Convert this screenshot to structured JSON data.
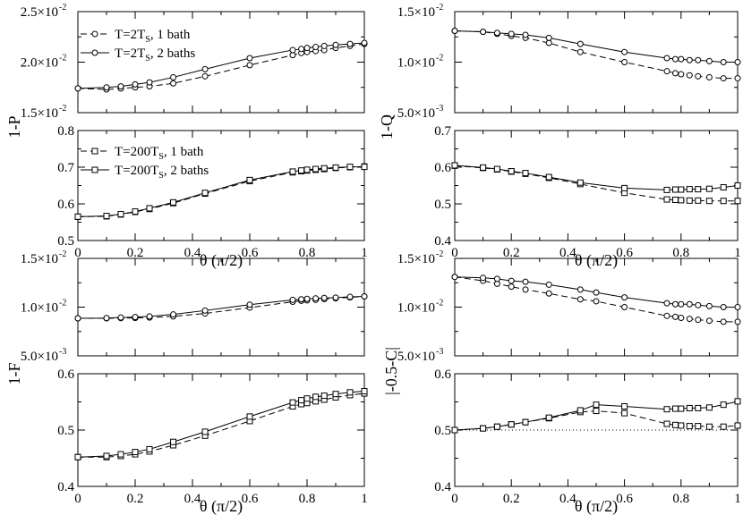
{
  "figure": {
    "ylabel_P": "1-P",
    "ylabel_Q": "1-Q",
    "ylabel_F": "1-F",
    "ylabel_C": "|-0.5-C|"
  },
  "legend_top": [
    {
      "text_pre": "T=2T",
      "sub": "S",
      "text_post": ", 1 bath",
      "style": "dashed",
      "marker": "circle"
    },
    {
      "text_pre": "T=2T",
      "sub": "S",
      "text_post": ", 2 baths",
      "style": "solid",
      "marker": "circle"
    }
  ],
  "legend_bottom": [
    {
      "text_pre": "T=200T",
      "sub": "S",
      "text_post": ", 1 bath",
      "style": "dashed",
      "marker": "square"
    },
    {
      "text_pre": "T=200T",
      "sub": "S",
      "text_post": ", 2 baths",
      "style": "solid",
      "marker": "square"
    }
  ],
  "chart_data": [
    {
      "id": "P-top",
      "type": "line",
      "xlabel": "",
      "ylabel": "1-P",
      "xlim": [
        0,
        1
      ],
      "ylim": [
        0.015,
        0.025
      ],
      "yticks": [
        {
          "m": "1.5",
          "e": "-2",
          "v": 0.015
        },
        {
          "m": "2.0",
          "e": "-2",
          "v": 0.02
        },
        {
          "m": "2.5",
          "e": "-2",
          "v": 0.025
        }
      ],
      "x": [
        0,
        0.1,
        0.15,
        0.2,
        0.25,
        0.333,
        0.444,
        0.6,
        0.75,
        0.78,
        0.8,
        0.83,
        0.86,
        0.9,
        0.95,
        1.0
      ],
      "series": [
        {
          "name": "T=2T_S, 1 bath",
          "style": "dashed",
          "marker": "circle",
          "values": [
            0.0174,
            0.0173,
            0.0174,
            0.0175,
            0.0176,
            0.0179,
            0.0186,
            0.0197,
            0.0207,
            0.0209,
            0.021,
            0.0211,
            0.0212,
            0.0214,
            0.0216,
            0.0218
          ]
        },
        {
          "name": "T=2T_S, 2 baths",
          "style": "solid",
          "marker": "circle",
          "values": [
            0.0174,
            0.0175,
            0.0176,
            0.0178,
            0.018,
            0.0185,
            0.0193,
            0.0204,
            0.0212,
            0.0213,
            0.0214,
            0.0215,
            0.0216,
            0.0217,
            0.0218,
            0.0219
          ]
        }
      ]
    },
    {
      "id": "P-bottom",
      "type": "line",
      "xlabel": "θ (π/2)",
      "ylabel": "",
      "xlim": [
        0,
        1
      ],
      "ylim": [
        0.5,
        0.8
      ],
      "yticks": [
        {
          "m": "0.5",
          "v": 0.5
        },
        {
          "m": "0.6",
          "v": 0.6
        },
        {
          "m": "0.7",
          "v": 0.7
        },
        {
          "m": "0.8",
          "v": 0.8
        }
      ],
      "xticks": [
        "0",
        "0.2",
        "0.4",
        "0.6",
        "0.8",
        "1"
      ],
      "x": [
        0,
        0.1,
        0.15,
        0.2,
        0.25,
        0.333,
        0.444,
        0.6,
        0.75,
        0.78,
        0.8,
        0.83,
        0.86,
        0.9,
        0.95,
        1.0
      ],
      "series": [
        {
          "name": "T=200T_S, 1 bath",
          "style": "dashed",
          "marker": "square",
          "values": [
            0.565,
            0.566,
            0.571,
            0.578,
            0.586,
            0.602,
            0.628,
            0.662,
            0.686,
            0.689,
            0.691,
            0.693,
            0.695,
            0.698,
            0.7,
            0.702
          ]
        },
        {
          "name": "T=200T_S, 2 baths",
          "style": "solid",
          "marker": "square",
          "values": [
            0.565,
            0.567,
            0.572,
            0.579,
            0.588,
            0.604,
            0.63,
            0.665,
            0.688,
            0.691,
            0.693,
            0.695,
            0.697,
            0.699,
            0.701,
            0.701
          ]
        }
      ]
    },
    {
      "id": "Q-top",
      "type": "line",
      "xlabel": "",
      "ylabel": "1-Q",
      "xlim": [
        0,
        1
      ],
      "ylim": [
        0.005,
        0.015
      ],
      "yticks": [
        {
          "m": "5.0",
          "e": "-3",
          "v": 0.005
        },
        {
          "m": "1.0",
          "e": "-2",
          "v": 0.01
        },
        {
          "m": "1.5",
          "e": "-2",
          "v": 0.015
        }
      ],
      "x": [
        0,
        0.1,
        0.15,
        0.2,
        0.25,
        0.333,
        0.444,
        0.6,
        0.75,
        0.78,
        0.8,
        0.83,
        0.86,
        0.9,
        0.95,
        1.0
      ],
      "series": [
        {
          "name": "T=2T_S, 1 bath",
          "style": "dashed",
          "marker": "circle",
          "values": [
            0.0131,
            0.013,
            0.0128,
            0.0126,
            0.0124,
            0.0119,
            0.011,
            0.01,
            0.0091,
            0.0089,
            0.0088,
            0.0087,
            0.0086,
            0.0085,
            0.0084,
            0.0084
          ]
        },
        {
          "name": "T=2T_S, 2 baths",
          "style": "solid",
          "marker": "circle",
          "values": [
            0.0131,
            0.013,
            0.0129,
            0.0128,
            0.0127,
            0.0124,
            0.0118,
            0.011,
            0.0104,
            0.0103,
            0.0103,
            0.0102,
            0.0102,
            0.0101,
            0.01,
            0.01
          ]
        }
      ]
    },
    {
      "id": "Q-bottom",
      "type": "line",
      "xlabel": "θ (π/2)",
      "ylabel": "",
      "xlim": [
        0,
        1
      ],
      "ylim": [
        0.4,
        0.7
      ],
      "yticks": [
        {
          "m": "0.4",
          "v": 0.4
        },
        {
          "m": "0.5",
          "v": 0.5
        },
        {
          "m": "0.6",
          "v": 0.6
        },
        {
          "m": "0.7",
          "v": 0.7
        }
      ],
      "xticks": [
        "0",
        "0.2",
        "0.4",
        "0.6",
        "0.8",
        "1"
      ],
      "x": [
        0,
        0.1,
        0.15,
        0.2,
        0.25,
        0.333,
        0.444,
        0.6,
        0.75,
        0.78,
        0.8,
        0.83,
        0.86,
        0.9,
        0.95,
        1.0
      ],
      "series": [
        {
          "name": "T=200T_S, 1 bath",
          "style": "dashed",
          "marker": "square",
          "values": [
            0.604,
            0.598,
            0.594,
            0.588,
            0.582,
            0.571,
            0.554,
            0.53,
            0.512,
            0.511,
            0.51,
            0.509,
            0.509,
            0.508,
            0.508,
            0.508
          ]
        },
        {
          "name": "T=200T_S, 2 baths",
          "style": "solid",
          "marker": "square",
          "values": [
            0.605,
            0.599,
            0.595,
            0.589,
            0.584,
            0.573,
            0.558,
            0.543,
            0.538,
            0.539,
            0.539,
            0.54,
            0.54,
            0.541,
            0.545,
            0.55
          ]
        }
      ]
    },
    {
      "id": "F-top",
      "type": "line",
      "xlabel": "",
      "ylabel": "1-F",
      "xlim": [
        0,
        1
      ],
      "ylim": [
        0.005,
        0.015
      ],
      "yticks": [
        {
          "m": "5.0",
          "e": "-3",
          "v": 0.005
        },
        {
          "m": "1.0",
          "e": "-2",
          "v": 0.01
        },
        {
          "m": "1.5",
          "e": "-2",
          "v": 0.015
        }
      ],
      "x": [
        0,
        0.1,
        0.15,
        0.2,
        0.25,
        0.333,
        0.444,
        0.6,
        0.75,
        0.78,
        0.8,
        0.83,
        0.86,
        0.9,
        0.95,
        1.0
      ],
      "series": [
        {
          "name": "T=2T_S, 1 bath",
          "style": "dashed",
          "marker": "circle",
          "values": [
            0.00885,
            0.00885,
            0.00887,
            0.00889,
            0.00893,
            0.00905,
            0.00935,
            0.00995,
            0.01055,
            0.01065,
            0.0107,
            0.01075,
            0.01082,
            0.0109,
            0.011,
            0.0111
          ]
        },
        {
          "name": "T=2T_S, 2 baths",
          "style": "solid",
          "marker": "circle",
          "values": [
            0.00885,
            0.00888,
            0.00893,
            0.00898,
            0.00905,
            0.00925,
            0.00965,
            0.01025,
            0.01075,
            0.0108,
            0.01085,
            0.0109,
            0.01094,
            0.01098,
            0.01105,
            0.0111
          ]
        }
      ]
    },
    {
      "id": "F-bottom",
      "type": "line",
      "xlabel": "θ (π/2)",
      "ylabel": "",
      "xlim": [
        0,
        1
      ],
      "ylim": [
        0.4,
        0.6
      ],
      "yticks": [
        {
          "m": "0.4",
          "v": 0.4
        },
        {
          "m": "0.5",
          "v": 0.5
        },
        {
          "m": "0.6",
          "v": 0.6
        }
      ],
      "xticks": [
        "0",
        "0.2",
        "0.4",
        "0.6",
        "0.8",
        "1"
      ],
      "x": [
        0,
        0.1,
        0.15,
        0.2,
        0.25,
        0.333,
        0.444,
        0.6,
        0.75,
        0.78,
        0.8,
        0.83,
        0.86,
        0.9,
        0.95,
        1.0
      ],
      "series": [
        {
          "name": "T=200T_S, 1 bath",
          "style": "dashed",
          "marker": "square",
          "values": [
            0.452,
            0.452,
            0.454,
            0.457,
            0.462,
            0.473,
            0.49,
            0.516,
            0.542,
            0.546,
            0.548,
            0.551,
            0.554,
            0.558,
            0.562,
            0.565
          ]
        },
        {
          "name": "T=200T_S, 2 baths",
          "style": "solid",
          "marker": "square",
          "values": [
            0.452,
            0.454,
            0.457,
            0.461,
            0.466,
            0.479,
            0.497,
            0.524,
            0.549,
            0.553,
            0.556,
            0.559,
            0.561,
            0.564,
            0.567,
            0.569
          ]
        }
      ]
    },
    {
      "id": "C-top",
      "type": "line",
      "xlabel": "",
      "ylabel": "|-0.5-C|",
      "xlim": [
        0,
        1
      ],
      "ylim": [
        0.005,
        0.015
      ],
      "yticks": [
        {
          "m": "5.0",
          "e": "-3",
          "v": 0.005
        },
        {
          "m": "1.0",
          "e": "-2",
          "v": 0.01
        },
        {
          "m": "1.5",
          "e": "-2",
          "v": 0.015
        }
      ],
      "x": [
        0,
        0.1,
        0.15,
        0.2,
        0.25,
        0.333,
        0.444,
        0.5,
        0.6,
        0.75,
        0.78,
        0.8,
        0.83,
        0.86,
        0.9,
        0.95,
        1.0
      ],
      "series": [
        {
          "name": "T=2T_S, 1 bath",
          "style": "dashed",
          "marker": "circle",
          "values": [
            0.0131,
            0.0127,
            0.0124,
            0.0121,
            0.0118,
            0.0114,
            0.0108,
            0.0106,
            0.01,
            0.0091,
            0.009,
            0.0089,
            0.0088,
            0.0087,
            0.0086,
            0.0085,
            0.0085
          ]
        },
        {
          "name": "T=2T_S, 2 baths",
          "style": "solid",
          "marker": "circle",
          "values": [
            0.0131,
            0.013,
            0.0129,
            0.0127,
            0.0126,
            0.0123,
            0.0118,
            0.0115,
            0.011,
            0.0104,
            0.0103,
            0.0103,
            0.0103,
            0.0102,
            0.0101,
            0.01,
            0.01
          ]
        }
      ]
    },
    {
      "id": "C-bottom",
      "type": "line",
      "xlabel": "θ (π/2)",
      "ylabel": "",
      "xlim": [
        0,
        1
      ],
      "ylim": [
        0.4,
        0.6
      ],
      "yticks": [
        {
          "m": "0.4",
          "v": 0.4
        },
        {
          "m": "0.5",
          "v": 0.5
        },
        {
          "m": "0.6",
          "v": 0.6
        }
      ],
      "xticks": [
        "0",
        "0.2",
        "0.4",
        "0.6",
        "0.8",
        "1"
      ],
      "reference_line": 0.5,
      "x": [
        0,
        0.1,
        0.15,
        0.2,
        0.25,
        0.333,
        0.444,
        0.5,
        0.6,
        0.75,
        0.78,
        0.8,
        0.83,
        0.86,
        0.9,
        0.95,
        1.0
      ],
      "series": [
        {
          "name": "T=200T_S, 1 bath",
          "style": "dashed",
          "marker": "square",
          "values": [
            0.5,
            0.503,
            0.506,
            0.51,
            0.514,
            0.521,
            0.532,
            0.534,
            0.53,
            0.511,
            0.509,
            0.508,
            0.507,
            0.507,
            0.506,
            0.506,
            0.508
          ]
        },
        {
          "name": "T=200T_S, 2 baths",
          "style": "solid",
          "marker": "square",
          "values": [
            0.5,
            0.503,
            0.506,
            0.51,
            0.514,
            0.522,
            0.535,
            0.545,
            0.542,
            0.537,
            0.538,
            0.538,
            0.539,
            0.539,
            0.54,
            0.545,
            0.551
          ]
        }
      ]
    }
  ]
}
